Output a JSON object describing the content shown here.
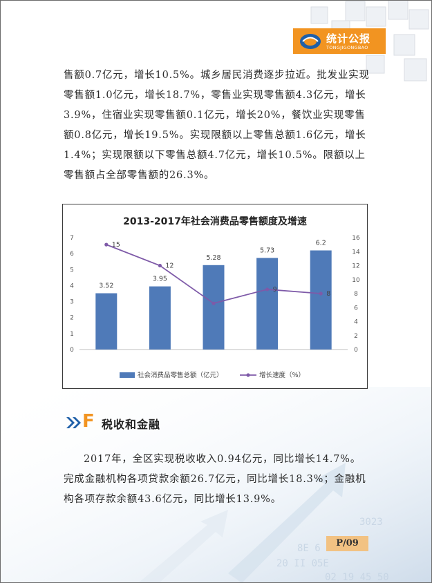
{
  "header": {
    "badge_title": "统计公报",
    "badge_subtitle": "TONGJIGONGBAO"
  },
  "paragraph_1": "售额0.7亿元，增长10.5%。城乡居民消费逐步拉近。批发业实现零售额1.0亿元，增长18.7%，零售业实现零售额4.3亿元，增长3.9%，住宿业实现零售额0.1亿元，增长20%，餐饮业实现零售额0.8亿元，增长19.5%。实现限额以上零售总额1.6亿元，增长1.4%；实现限额以下零售总额4.7亿元，增长10.5%。限额以上零售额占全部零售额的26.3%。",
  "chart_data": {
    "type": "bar",
    "title": "2013-2017年社会消费品零售额度及增速",
    "categories": [
      "",
      "",
      "",
      "",
      ""
    ],
    "series": [
      {
        "name": "社会消费品零售总额（亿元）",
        "type": "bar",
        "axis": "left",
        "color": "#4f7ab8",
        "values": [
          3.52,
          3.95,
          5.28,
          5.73,
          6.2
        ],
        "labels": [
          "3.52",
          "3.95",
          "5.28",
          "5.73",
          "6.2"
        ]
      },
      {
        "name": "增长速度（%）",
        "type": "line",
        "axis": "right",
        "color": "#7e5aa8",
        "values": [
          15,
          12,
          6.6,
          8.6,
          8
        ],
        "labels": [
          "15",
          "12",
          "",
          "9",
          "8"
        ]
      }
    ],
    "y_left": {
      "min": 0,
      "max": 7,
      "ticks": [
        "0",
        "1",
        "2",
        "3",
        "4",
        "5",
        "6",
        "7"
      ]
    },
    "y_right": {
      "min": 0,
      "max": 16,
      "ticks": [
        "0",
        "2",
        "4",
        "6",
        "8",
        "10",
        "12",
        "14",
        "16"
      ]
    },
    "grid": false,
    "legend_position": "bottom"
  },
  "section": {
    "letter": "F",
    "title": "税收和金融"
  },
  "paragraph_2": "2017年，全区实现税收收入0.94亿元，同比增长14.7%。完成金融机构各项贷款余额26.7亿元，同比增长18.3%；金融机构各项存款余额43.6亿元，同比增长13.9%。",
  "footer": {
    "page_number": "P/09"
  },
  "colors": {
    "accent": "#f29421",
    "bar": "#4f7ab8",
    "line": "#7e5aa8",
    "page_tag": "#f2c283"
  }
}
